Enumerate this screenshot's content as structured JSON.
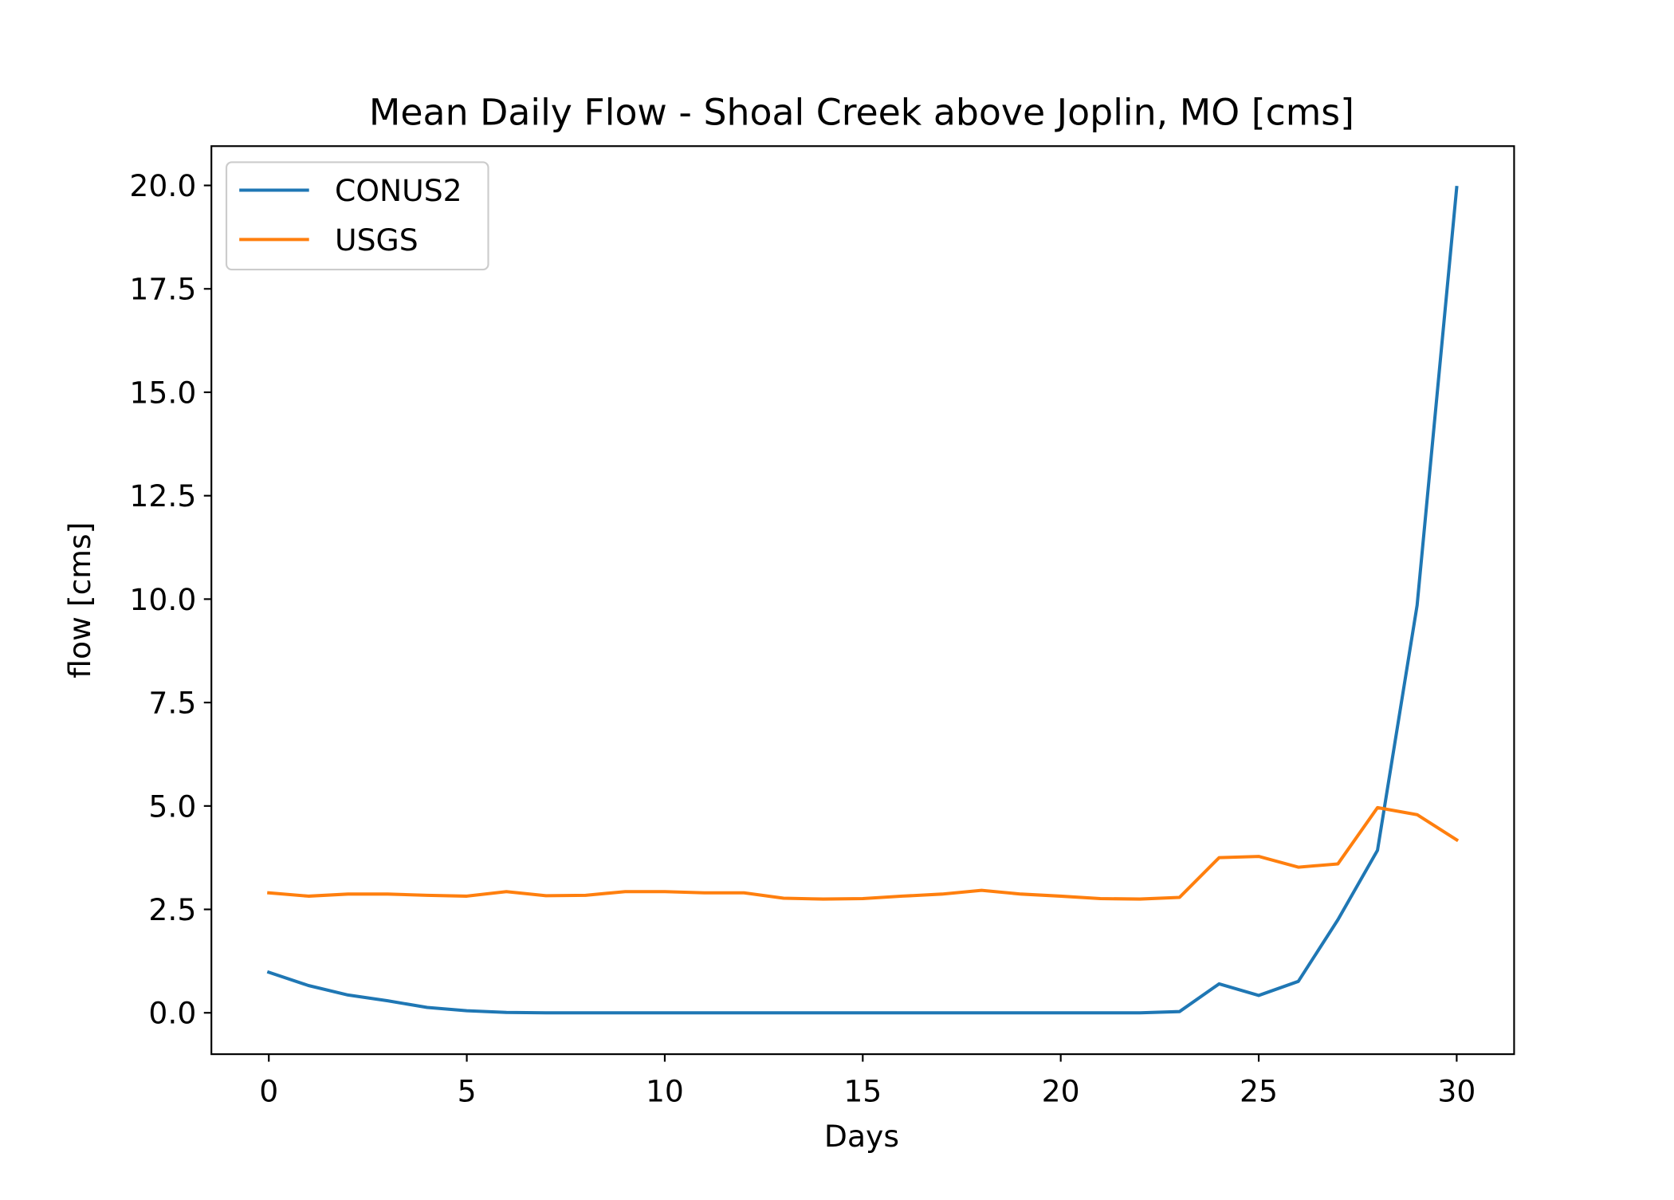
{
  "chart_data": {
    "type": "line",
    "title": "Mean Daily Flow - Shoal Creek above Joplin, MO [cms]",
    "xlabel": "Days",
    "ylabel": "flow [cms]",
    "xlim": [
      -1.45,
      31.45
    ],
    "ylim": [
      -1.0,
      20.95
    ],
    "xticks": [
      0,
      5,
      10,
      15,
      20,
      25,
      30
    ],
    "xtick_labels": [
      "0",
      "5",
      "10",
      "15",
      "20",
      "25",
      "30"
    ],
    "yticks": [
      0.0,
      2.5,
      5.0,
      7.5,
      10.0,
      12.5,
      15.0,
      17.5,
      20.0
    ],
    "ytick_labels": [
      "0.0",
      "2.5",
      "5.0",
      "7.5",
      "10.0",
      "12.5",
      "15.0",
      "17.5",
      "20.0"
    ],
    "grid": false,
    "legend_position": "top-left",
    "x": [
      0,
      1,
      2,
      3,
      4,
      5,
      6,
      7,
      8,
      9,
      10,
      11,
      12,
      13,
      14,
      15,
      16,
      17,
      18,
      19,
      20,
      21,
      22,
      23,
      24,
      25,
      26,
      27,
      28,
      29,
      30
    ],
    "series": [
      {
        "name": "CONUS2",
        "color": "#1f77b4",
        "values": [
          0.98,
          0.66,
          0.43,
          0.29,
          0.13,
          0.05,
          0.01,
          0.0,
          0.0,
          0.0,
          0.0,
          0.0,
          0.0,
          0.0,
          0.0,
          0.0,
          0.0,
          0.0,
          0.0,
          0.0,
          0.0,
          0.0,
          0.0,
          0.03,
          0.7,
          0.42,
          0.76,
          2.25,
          3.93,
          9.85,
          19.95
        ]
      },
      {
        "name": "USGS",
        "color": "#ff7f0e",
        "values": [
          2.9,
          2.82,
          2.87,
          2.87,
          2.84,
          2.82,
          2.93,
          2.83,
          2.84,
          2.93,
          2.93,
          2.9,
          2.9,
          2.77,
          2.75,
          2.76,
          2.82,
          2.87,
          2.96,
          2.87,
          2.82,
          2.76,
          2.75,
          2.79,
          3.75,
          3.78,
          3.52,
          3.6,
          4.96,
          4.79,
          4.18
        ]
      }
    ]
  }
}
